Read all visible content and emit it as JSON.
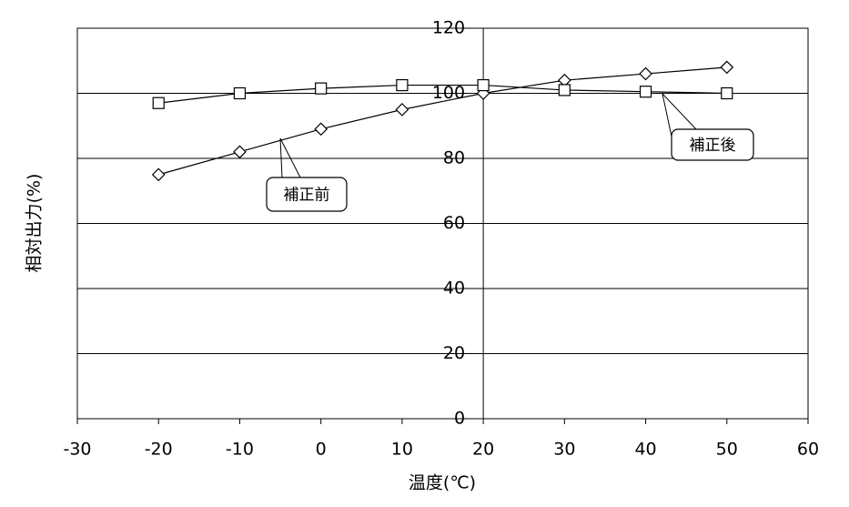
{
  "chart_data": {
    "type": "line",
    "x_label": "温度(℃)",
    "y_label": "相対出力(%)",
    "x": [
      -20,
      -10,
      0,
      10,
      20,
      30,
      40,
      50
    ],
    "series": [
      {
        "name": "補正前",
        "color": "#000000",
        "marker": "diamond",
        "values": [
          75,
          82,
          89,
          95,
          100,
          104,
          106,
          108
        ]
      },
      {
        "name": "補正後",
        "color": "#000000",
        "marker": "square",
        "values": [
          97,
          100,
          101.5,
          102.5,
          102.5,
          101,
          100.5,
          100
        ]
      }
    ],
    "xlim": [
      -30,
      60
    ],
    "xticks": [
      -30,
      -20,
      -10,
      0,
      10,
      20,
      30,
      40,
      50,
      60
    ],
    "ylim": [
      0,
      120
    ],
    "yticks": [
      0,
      20,
      40,
      60,
      80,
      100,
      120
    ],
    "y_axis_at": 20,
    "grid": true
  }
}
